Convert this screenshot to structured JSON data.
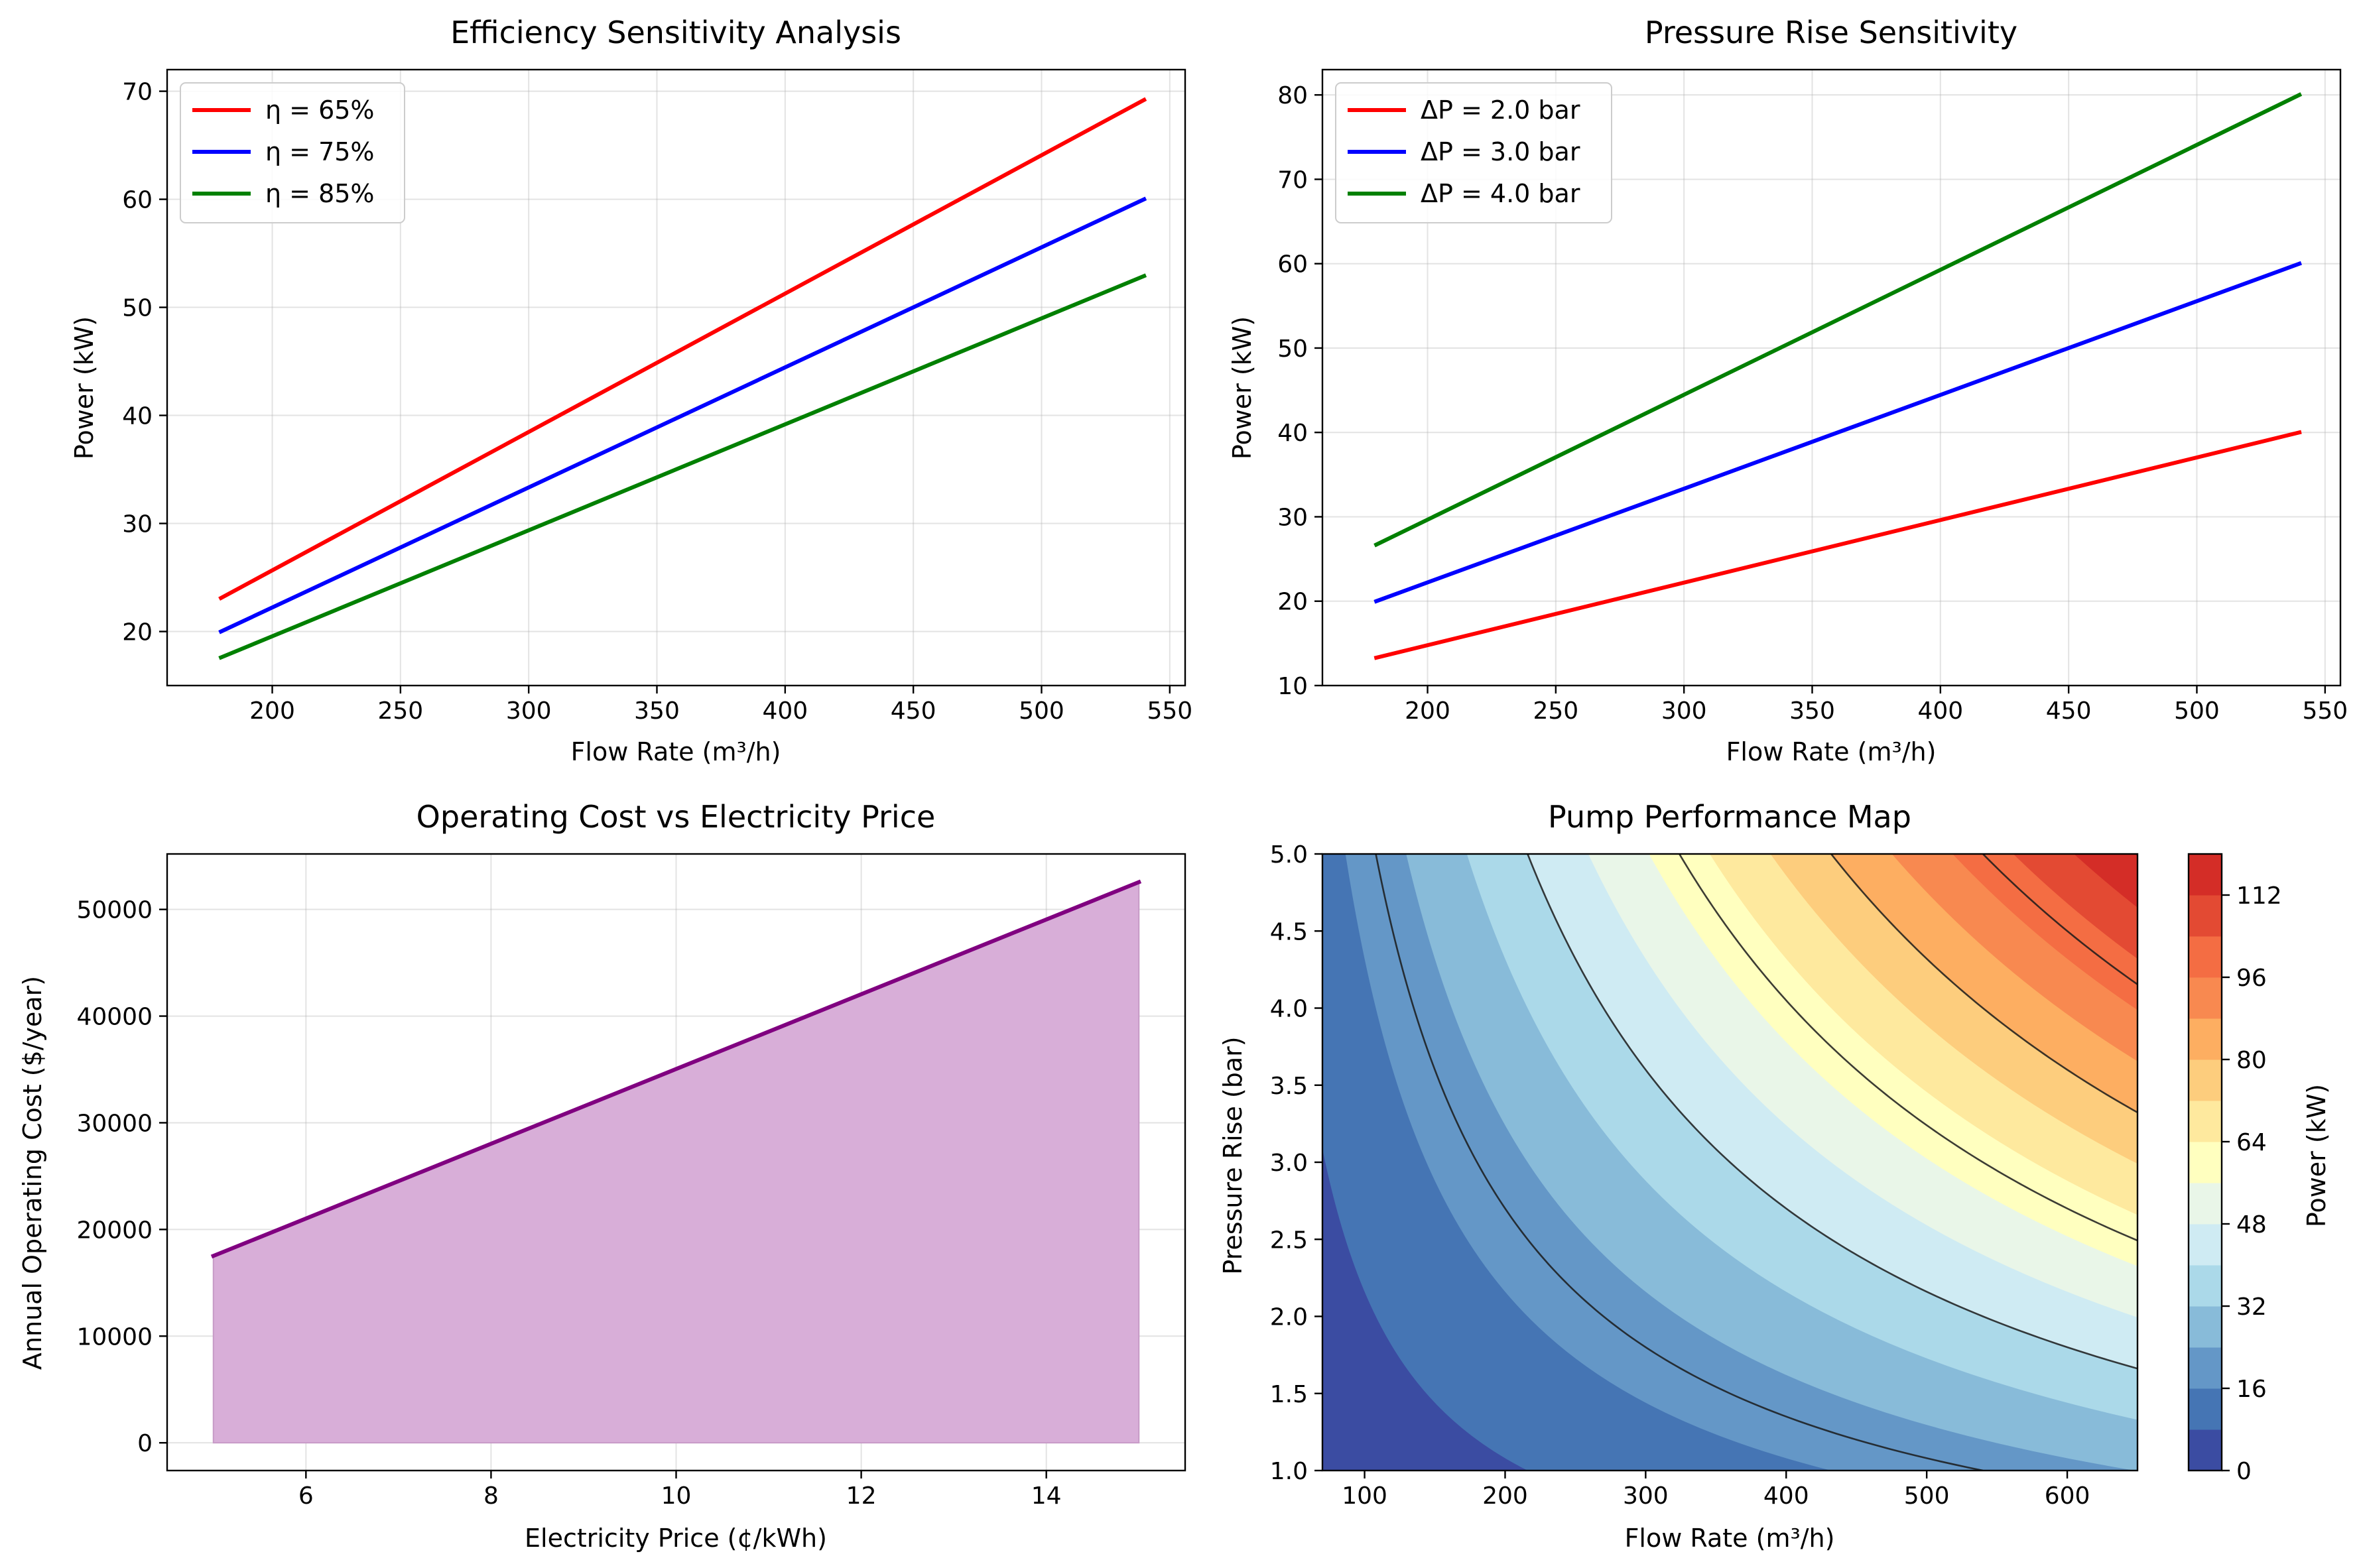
{
  "chart_data": [
    {
      "id": "efficiency",
      "type": "line",
      "title": "Efficiency Sensitivity Analysis",
      "xlabel": "Flow Rate (m³/h)",
      "ylabel": "Power (kW)",
      "xlim": [
        159,
        556
      ],
      "ylim": [
        15,
        72
      ],
      "xticks": [
        200,
        250,
        300,
        350,
        400,
        450,
        500,
        550
      ],
      "yticks": [
        20,
        30,
        40,
        50,
        60,
        70
      ],
      "grid": true,
      "legend": "upper-left",
      "series": [
        {
          "name": "η = 65%",
          "color": "#ff0000",
          "x": [
            180,
            540
          ],
          "y": [
            23.1,
            69.2
          ]
        },
        {
          "name": "η = 75%",
          "color": "#0000ff",
          "x": [
            180,
            540
          ],
          "y": [
            20.0,
            60.0
          ]
        },
        {
          "name": "η = 85%",
          "color": "#008000",
          "x": [
            180,
            540
          ],
          "y": [
            17.6,
            52.9
          ]
        }
      ]
    },
    {
      "id": "pressure",
      "type": "line",
      "title": "Pressure Rise Sensitivity",
      "xlabel": "Flow Rate (m³/h)",
      "ylabel": "Power (kW)",
      "xlim": [
        159,
        556
      ],
      "ylim": [
        10,
        83
      ],
      "xticks": [
        200,
        250,
        300,
        350,
        400,
        450,
        500,
        550
      ],
      "yticks": [
        10,
        20,
        30,
        40,
        50,
        60,
        70,
        80
      ],
      "grid": true,
      "legend": "upper-left",
      "series": [
        {
          "name": "ΔP = 2.0 bar",
          "color": "#ff0000",
          "x": [
            180,
            540
          ],
          "y": [
            13.3,
            40.0
          ]
        },
        {
          "name": "ΔP = 3.0 bar",
          "color": "#0000ff",
          "x": [
            180,
            540
          ],
          "y": [
            20.0,
            60.0
          ]
        },
        {
          "name": "ΔP = 4.0 bar",
          "color": "#008000",
          "x": [
            180,
            540
          ],
          "y": [
            26.7,
            80.0
          ]
        }
      ]
    },
    {
      "id": "cost",
      "type": "area",
      "title": "Operating Cost vs Electricity Price",
      "xlabel": "Electricity Price (¢/kWh)",
      "ylabel": "Annual Operating Cost ($/year)",
      "xlim": [
        4.5,
        15.5
      ],
      "ylim": [
        -2600,
        55200
      ],
      "xticks": [
        6,
        8,
        10,
        12,
        14
      ],
      "yticks": [
        0,
        10000,
        20000,
        30000,
        40000,
        50000
      ],
      "grid": true,
      "line_color": "#800080",
      "fill_color": "#d8aed8",
      "series": [
        {
          "x": [
            5,
            15
          ],
          "y": [
            17520,
            52560
          ]
        }
      ]
    },
    {
      "id": "map",
      "type": "heatmap",
      "title": "Pump Performance Map",
      "xlabel": "Flow Rate (m³/h)",
      "ylabel": "Pressure Rise (bar)",
      "xlim": [
        70,
        650
      ],
      "ylim": [
        1.0,
        5.0
      ],
      "xticks": [
        100,
        200,
        300,
        400,
        500,
        600
      ],
      "yticks": [
        1.0,
        1.5,
        2.0,
        2.5,
        3.0,
        3.5,
        4.0,
        4.5,
        5.0
      ],
      "ytick_labels": [
        "1.0",
        "1.5",
        "2.0",
        "2.5",
        "3.0",
        "3.5",
        "4.0",
        "4.5",
        "5.0"
      ],
      "formula_divisor": 27,
      "levels": [
        0,
        8,
        16,
        24,
        32,
        40,
        48,
        56,
        64,
        72,
        80,
        88,
        96,
        104,
        112,
        120
      ],
      "band_colors": [
        "#3b4ca2",
        "#4575b4",
        "#6497c7",
        "#88bbd9",
        "#abd9e9",
        "#cfebf3",
        "#e9f6e8",
        "#ffffbf",
        "#fee99e",
        "#fdcd7d",
        "#fdae61",
        "#f88950",
        "#f46d43",
        "#e34a33",
        "#d42d27",
        "#b5172a"
      ],
      "contour_lines": [
        20,
        40,
        60,
        80,
        100
      ],
      "colorbar_label": "Power (kW)",
      "colorbar_ticks": [
        0,
        16,
        32,
        48,
        64,
        80,
        96,
        112
      ]
    }
  ]
}
